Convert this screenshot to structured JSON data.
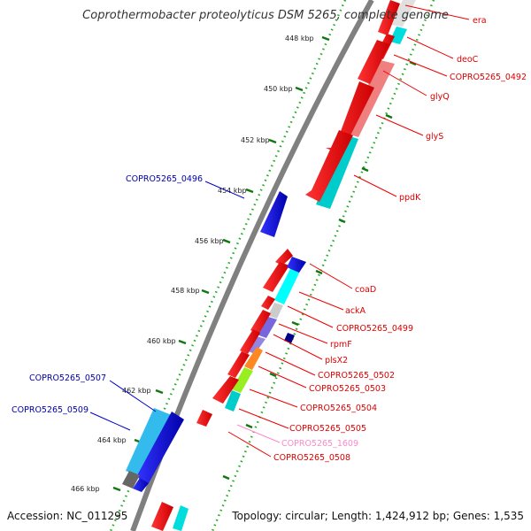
{
  "title": "Coprothermobacter proteolyticus DSM 5265, complete genome",
  "accession": "Accession: NC_011295",
  "topology": "Topology: circular; Length: 1,424,912 bp; Genes: 1,535",
  "kbp_ticks": [
    "448 kbp",
    "450 kbp",
    "452 kbp",
    "454 kbp",
    "456 kbp",
    "458 kbp",
    "460 kbp",
    "462 kbp",
    "464 kbp",
    "466 kbp"
  ],
  "genes_outer_strand": [
    "COPRO5265_0496",
    "COPRO5265_0507",
    "COPRO5265_0509"
  ],
  "genes_inner_strand": [
    "era",
    "deoC",
    "COPRO5265_0492",
    "glyQ",
    "glyS",
    "ppdK",
    "coaD",
    "ackA",
    "COPRO5265_0499",
    "rpmF",
    "plsX2",
    "COPRO5265_0502",
    "COPRO5265_0503",
    "COPRO5265_0504",
    "COPRO5265_0505",
    "COPRO5265_1609",
    "COPRO5265_0508"
  ],
  "colors": {
    "cds_forward": "#0000dd",
    "cds_reverse": "#ee0000",
    "rna_label": "#ff88cc",
    "backbone": "#808080",
    "tick_green": "#228822",
    "cog_cyan": "#00dddd",
    "cog_pink": "#f08080",
    "cog_purple": "#7766dd",
    "cog_orange": "#ff8822",
    "cog_lime": "#99ee22",
    "cog_gray": "#999999"
  }
}
